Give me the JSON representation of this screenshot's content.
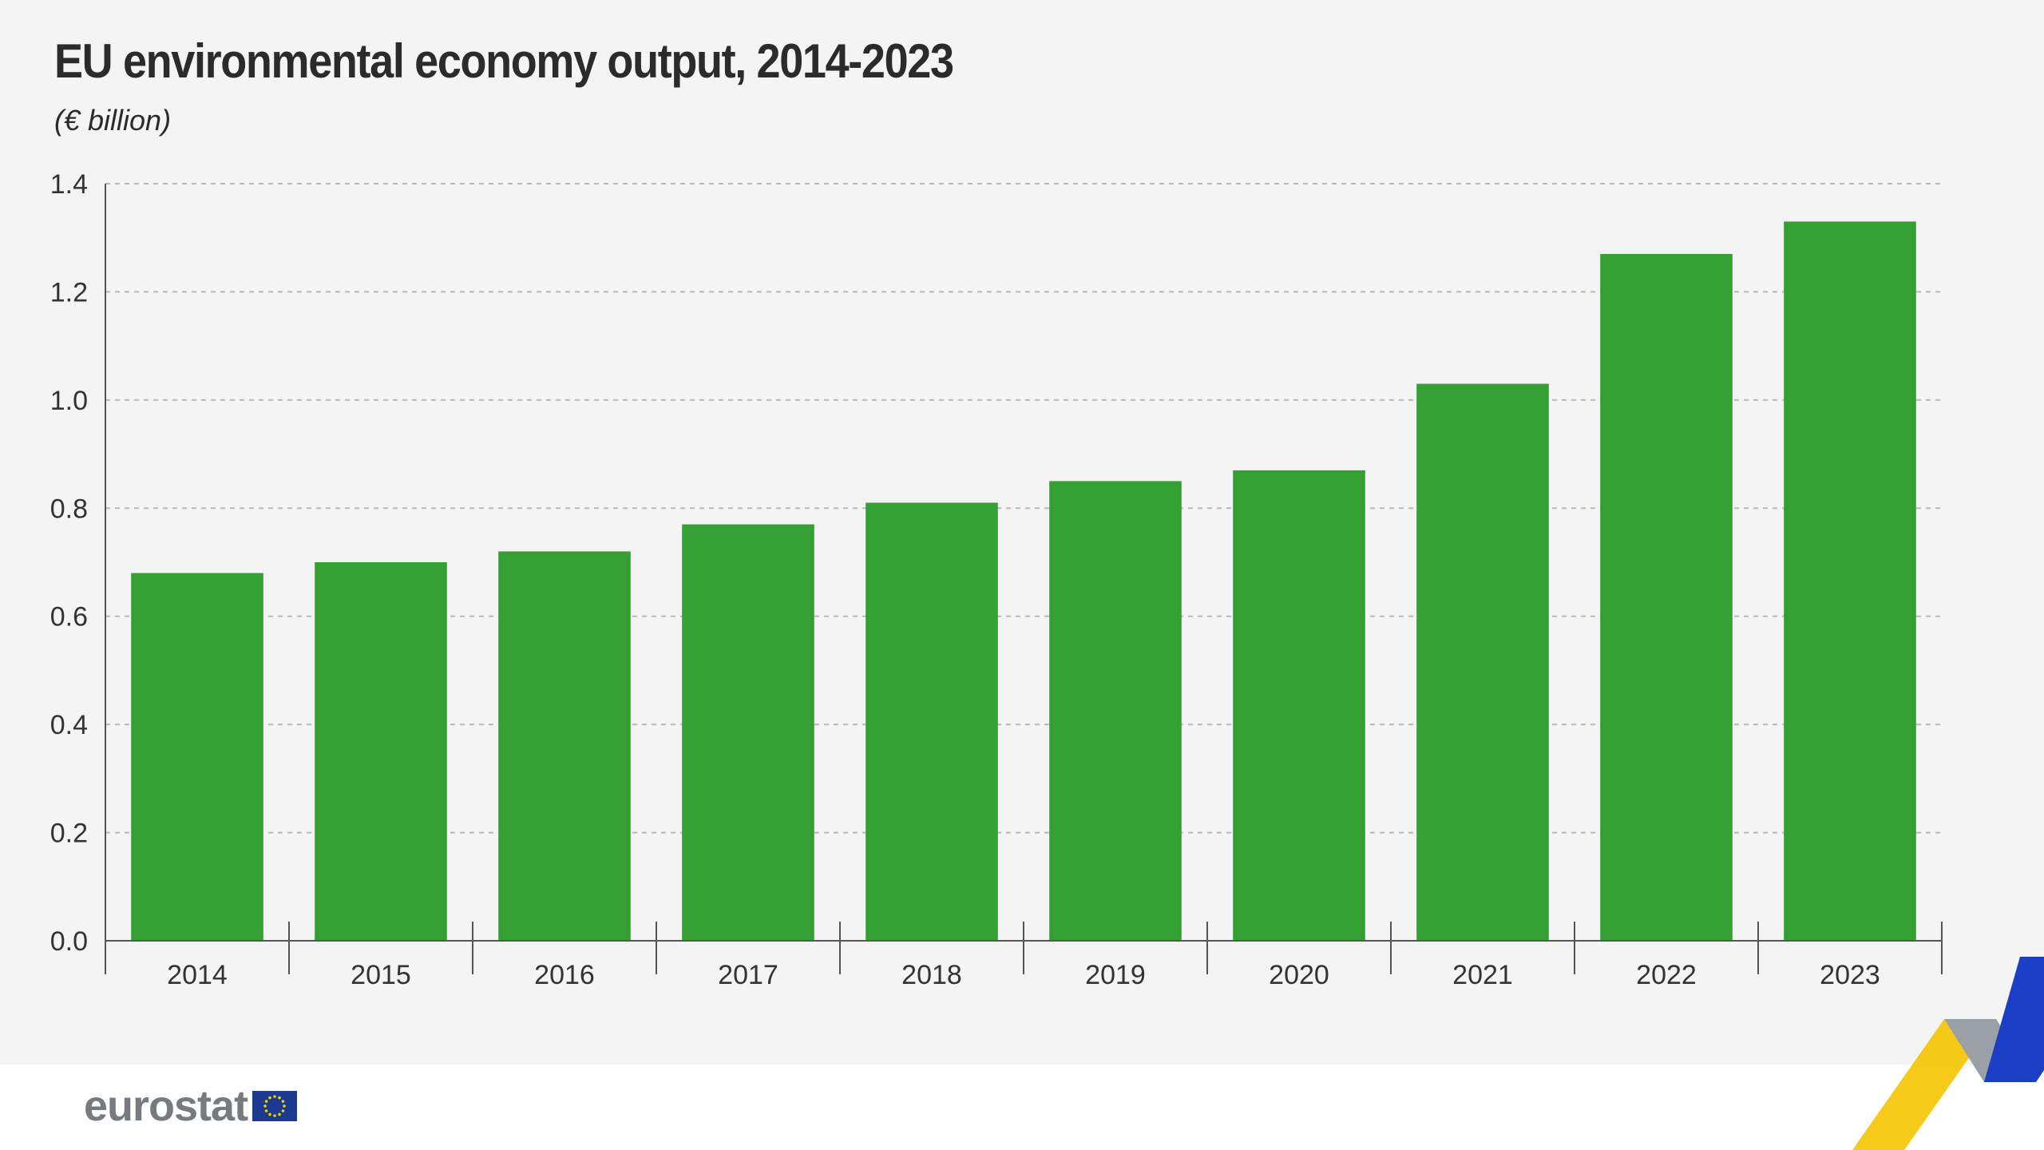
{
  "title": "EU environmental economy output, 2014-2023",
  "subtitle": "(€ billion)",
  "brand": {
    "logo_text": "eurostat"
  },
  "colors": {
    "bar": "#34a034",
    "background": "#f4f4f4",
    "grid": "#b8b8b8",
    "axis": "#555555",
    "ribbon_yellow": "#f5c400",
    "ribbon_grey": "#9aa0a6",
    "ribbon_blue": "#1a3fc4",
    "eu_blue": "#1b3a8f",
    "eu_star": "#f5d000"
  },
  "chart_data": {
    "type": "bar",
    "categories": [
      "2014",
      "2015",
      "2016",
      "2017",
      "2018",
      "2019",
      "2020",
      "2021",
      "2022",
      "2023"
    ],
    "series": [
      {
        "values": [
          0.68,
          0.7,
          0.72,
          0.77,
          0.81,
          0.85,
          0.87,
          1.03,
          1.27,
          1.33
        ]
      }
    ],
    "y_ticks": [
      "0.0",
      "0.2",
      "0.4",
      "0.6",
      "0.8",
      "1.0",
      "1.2",
      "1.4"
    ],
    "ylim": [
      0,
      1.4
    ],
    "grid": true,
    "legend": "none",
    "title": "EU environmental economy output, 2014-2023",
    "ylabel": "(€ billion)",
    "xlabel": ""
  }
}
